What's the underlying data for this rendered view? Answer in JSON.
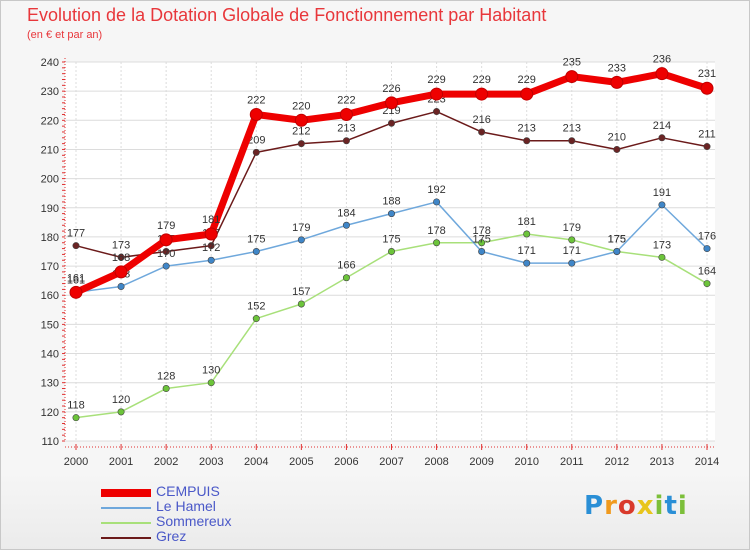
{
  "header": {
    "title": "Evolution de la Dotation Globale de Fonctionnement par Habitant",
    "subtitle": "(en € et par an)"
  },
  "brand": {
    "text": "Proxiti",
    "colors": [
      "#2a8fd6",
      "#f09a1e",
      "#d93a2b",
      "#e8c51c",
      "#7cbf3a",
      "#2a8fd6",
      "#7cbf3a"
    ]
  },
  "chart_data": {
    "type": "line",
    "x": [
      "2000",
      "2001",
      "2002",
      "2003",
      "2004",
      "2005",
      "2006",
      "2007",
      "2008",
      "2009",
      "2010",
      "2011",
      "2012",
      "2013",
      "2014"
    ],
    "yticks": [
      110,
      120,
      130,
      140,
      150,
      160,
      170,
      180,
      190,
      200,
      210,
      220,
      230,
      240
    ],
    "ylim": [
      110,
      240
    ],
    "grid": true,
    "legend": "bottom-left",
    "series": [
      {
        "name": "Grez",
        "color": "#6b1a1a",
        "marker": "#6b2424",
        "values": [
          177,
          173,
          175,
          177,
          209,
          212,
          213,
          219,
          223,
          216,
          213,
          213,
          210,
          214,
          211
        ],
        "labels": [
          "177",
          "173",
          "175",
          "177",
          "209",
          "212",
          "213",
          "219",
          "223",
          "216",
          "213",
          "213",
          "210",
          "214",
          "211"
        ]
      },
      {
        "name": "Sommereux",
        "color": "#a8e07a",
        "marker": "#6cc43a",
        "values": [
          118,
          120,
          128,
          130,
          152,
          157,
          166,
          175,
          178,
          178,
          181,
          179,
          175,
          173,
          164
        ],
        "labels": [
          "118",
          "120",
          "128",
          "130",
          "152",
          "157",
          "166",
          "175",
          "178",
          "178",
          "181",
          "179",
          "175",
          "173",
          "164"
        ]
      },
      {
        "name": "Le Hamel",
        "color": "#6fa8dc",
        "marker": "#3f86c8",
        "values": [
          161,
          163,
          170,
          172,
          175,
          179,
          184,
          188,
          192,
          175,
          171,
          171,
          175,
          191,
          176
        ],
        "labels": [
          "161",
          "163",
          "170",
          "172",
          "175",
          "179",
          "184",
          "188",
          "192",
          "175",
          "171",
          "171",
          "175",
          "191",
          "176"
        ]
      },
      {
        "name": "CEMPUIS",
        "color": "#ee0000",
        "marker": "#ee0000",
        "values": [
          161,
          168,
          179,
          181,
          222,
          220,
          222,
          226,
          229,
          229,
          229,
          235,
          233,
          236,
          231
        ],
        "labels": [
          "161",
          "168",
          "179",
          "181",
          "222",
          "220",
          "222",
          "226",
          "229",
          "229",
          "229",
          "235",
          "233",
          "236",
          "231"
        ]
      }
    ],
    "legend_order": [
      "CEMPUIS",
      "Le Hamel",
      "Sommereux",
      "Grez"
    ]
  }
}
